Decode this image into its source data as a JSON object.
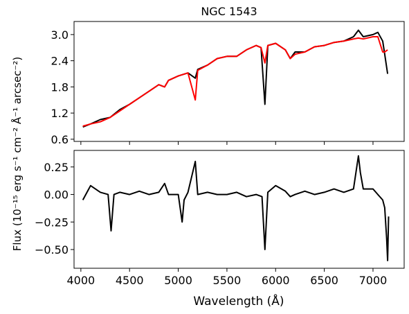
{
  "chart_data": [
    {
      "type": "line",
      "title": "NGC 1543",
      "ylim": [
        0.55,
        3.3
      ],
      "xlim": [
        3930,
        7320
      ],
      "yticks": [
        {
          "value": 0.6,
          "label": "0.6"
        },
        {
          "value": 1.2,
          "label": "1.2"
        },
        {
          "value": 1.8,
          "label": "1.8"
        },
        {
          "value": 2.4,
          "label": "2.4"
        },
        {
          "value": 3.0,
          "label": "3.0"
        }
      ],
      "series": [
        {
          "color": "#000000",
          "x": [
            4020,
            4100,
            4200,
            4300,
            4400,
            4500,
            4600,
            4700,
            4800,
            4860,
            4900,
            5000,
            5100,
            5175,
            5200,
            5300,
            5400,
            5500,
            5600,
            5700,
            5800,
            5850,
            5890,
            5920,
            6000,
            6100,
            6150,
            6200,
            6300,
            6400,
            6500,
            6600,
            6700,
            6800,
            6850,
            6900,
            7000,
            7050,
            7100,
            7120,
            7150
          ],
          "y": [
            0.88,
            0.95,
            1.05,
            1.1,
            1.28,
            1.4,
            1.55,
            1.7,
            1.85,
            1.8,
            1.95,
            2.05,
            2.12,
            2.0,
            2.2,
            2.3,
            2.45,
            2.5,
            2.5,
            2.65,
            2.75,
            2.7,
            1.4,
            2.75,
            2.8,
            2.65,
            2.45,
            2.6,
            2.6,
            2.72,
            2.75,
            2.82,
            2.85,
            2.95,
            3.1,
            2.95,
            3.0,
            3.05,
            2.85,
            2.55,
            2.1
          ]
        },
        {
          "color": "#ff0000",
          "x": [
            4020,
            4100,
            4200,
            4300,
            4400,
            4500,
            4600,
            4700,
            4800,
            4860,
            4900,
            5000,
            5100,
            5175,
            5200,
            5300,
            5400,
            5500,
            5600,
            5700,
            5800,
            5850,
            5890,
            5920,
            6000,
            6100,
            6150,
            6200,
            6300,
            6400,
            6500,
            6600,
            6700,
            6800,
            6850,
            6900,
            7000,
            7050,
            7100,
            7120,
            7150
          ],
          "y": [
            0.9,
            0.95,
            1.0,
            1.1,
            1.25,
            1.4,
            1.55,
            1.7,
            1.85,
            1.8,
            1.95,
            2.05,
            2.12,
            1.5,
            2.18,
            2.3,
            2.45,
            2.5,
            2.5,
            2.65,
            2.75,
            2.7,
            2.35,
            2.75,
            2.8,
            2.65,
            2.45,
            2.55,
            2.6,
            2.72,
            2.75,
            2.82,
            2.85,
            2.9,
            2.92,
            2.9,
            2.95,
            2.95,
            2.6,
            2.6,
            2.65
          ]
        }
      ]
    },
    {
      "type": "line",
      "xlabel": "Wavelength (Å)",
      "ylim": [
        -0.67,
        0.4
      ],
      "xlim": [
        3930,
        7320
      ],
      "yticks": [
        {
          "value": 0.25,
          "label": "0.25"
        },
        {
          "value": 0.0,
          "label": "0.00"
        },
        {
          "value": -0.25,
          "label": "−0.25"
        },
        {
          "value": -0.5,
          "label": "−0.50"
        }
      ],
      "xticks": [
        {
          "value": 4000,
          "label": "4000"
        },
        {
          "value": 4500,
          "label": "4500"
        },
        {
          "value": 5000,
          "label": "5000"
        },
        {
          "value": 5500,
          "label": "5500"
        },
        {
          "value": 6000,
          "label": "6000"
        },
        {
          "value": 6500,
          "label": "6500"
        },
        {
          "value": 7000,
          "label": "7000"
        }
      ],
      "series": [
        {
          "color": "#000000",
          "x": [
            4020,
            4100,
            4200,
            4280,
            4310,
            4340,
            4400,
            4500,
            4600,
            4700,
            4800,
            4860,
            4900,
            5000,
            5040,
            5060,
            5100,
            5175,
            5200,
            5300,
            5400,
            5500,
            5600,
            5700,
            5800,
            5860,
            5890,
            5920,
            6000,
            6100,
            6150,
            6200,
            6300,
            6400,
            6500,
            6600,
            6700,
            6800,
            6850,
            6870,
            6900,
            7000,
            7050,
            7100,
            7120,
            7140,
            7150,
            7160
          ],
          "y": [
            -0.05,
            0.08,
            0.02,
            0.0,
            -0.33,
            0.0,
            0.02,
            0.0,
            0.03,
            0.0,
            0.02,
            0.1,
            0.0,
            0.0,
            -0.25,
            -0.05,
            0.02,
            0.3,
            0.0,
            0.02,
            0.0,
            0.0,
            0.02,
            -0.02,
            0.0,
            -0.02,
            -0.5,
            0.02,
            0.08,
            0.03,
            -0.02,
            0.0,
            0.03,
            0.0,
            0.02,
            0.05,
            0.02,
            0.05,
            0.35,
            0.2,
            0.05,
            0.05,
            0.0,
            -0.05,
            -0.12,
            -0.4,
            -0.6,
            -0.2
          ]
        }
      ]
    }
  ],
  "shared_ylabel": "Flux (10⁻¹⁵ erg s⁻¹ cm⁻² Å⁻¹ arcsec⁻²)"
}
